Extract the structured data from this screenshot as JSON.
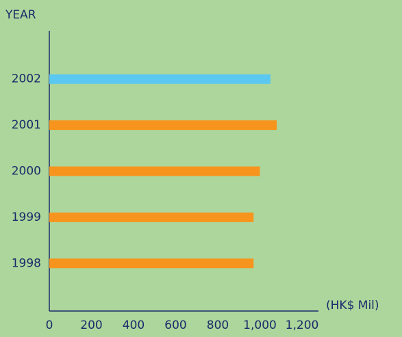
{
  "chart_data": {
    "type": "bar",
    "orientation": "horizontal",
    "y_axis_label": "YEAR",
    "x_axis_label": "(HK$ Mil)",
    "categories": [
      "2002",
      "2001",
      "2000",
      "1999",
      "1998"
    ],
    "values": [
      1050,
      1080,
      1000,
      970,
      970
    ],
    "colors": [
      "#5bc8f2",
      "#f7941d",
      "#f7941d",
      "#f7941d",
      "#f7941d"
    ],
    "xlim": [
      0,
      1200
    ],
    "xticks": [
      0,
      200,
      400,
      600,
      800,
      {
        "value": 1000,
        "label": "1,000"
      },
      {
        "value": 1200,
        "label": "1,200"
      }
    ],
    "grid": false
  }
}
